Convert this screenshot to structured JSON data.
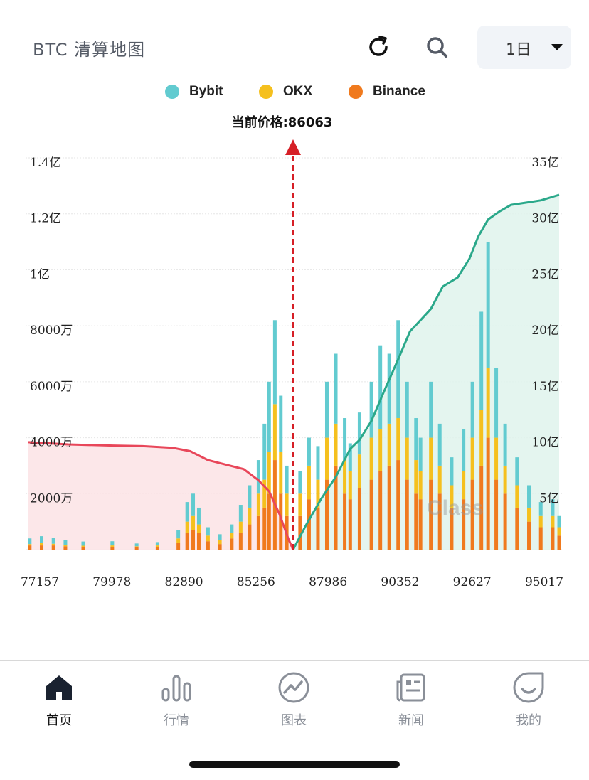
{
  "header": {
    "title": "BTC 清算地图",
    "period": "1日",
    "icons": [
      "refresh-icon",
      "search-icon",
      "dropdown-caret-icon"
    ]
  },
  "chart_data": {
    "type": "bar",
    "legend": [
      {
        "name": "Bybit",
        "color": "#62cbd0"
      },
      {
        "name": "OKX",
        "color": "#f5c01e"
      },
      {
        "name": "Binance",
        "color": "#f07a1e"
      }
    ],
    "current_price_label": "当前价格:86063",
    "current_price": 86063,
    "x_ticks": [
      "77157",
      "79978",
      "82890",
      "85256",
      "87986",
      "90352",
      "92627",
      "95017"
    ],
    "x_range": [
      77157,
      95017
    ],
    "y_left_ticks": [
      "1.4亿",
      "1.2亿",
      "1亿",
      "8000万",
      "6000万",
      "4000万",
      "2000万"
    ],
    "y_left_range": [
      0,
      140000000
    ],
    "y_right_ticks": [
      "35亿",
      "30亿",
      "25亿",
      "20亿",
      "15亿",
      "10亿",
      "5亿"
    ],
    "y_right_range": [
      0,
      3500000000
    ],
    "grid": true,
    "long_cumulative_color": "#e8475a",
    "short_cumulative_color": "#2aa88a",
    "long_cumulative": [
      [
        77157,
        960000000
      ],
      [
        78500,
        940000000
      ],
      [
        80000,
        930000000
      ],
      [
        81000,
        925000000
      ],
      [
        82000,
        910000000
      ],
      [
        82600,
        880000000
      ],
      [
        83200,
        800000000
      ],
      [
        83800,
        760000000
      ],
      [
        84400,
        720000000
      ],
      [
        84900,
        620000000
      ],
      [
        85256,
        520000000
      ],
      [
        85600,
        320000000
      ],
      [
        85900,
        100000000
      ],
      [
        86063,
        0
      ]
    ],
    "short_cumulative": [
      [
        86063,
        0
      ],
      [
        86500,
        220000000
      ],
      [
        87000,
        450000000
      ],
      [
        87500,
        650000000
      ],
      [
        87986,
        900000000
      ],
      [
        88300,
        980000000
      ],
      [
        88700,
        1150000000
      ],
      [
        89100,
        1400000000
      ],
      [
        89600,
        1700000000
      ],
      [
        90000,
        1950000000
      ],
      [
        90352,
        2050000000
      ],
      [
        90700,
        2150000000
      ],
      [
        91100,
        2350000000
      ],
      [
        91600,
        2430000000
      ],
      [
        92000,
        2600000000
      ],
      [
        92300,
        2800000000
      ],
      [
        92627,
        2950000000
      ],
      [
        93000,
        3020000000
      ],
      [
        93400,
        3080000000
      ],
      [
        93900,
        3100000000
      ],
      [
        94400,
        3120000000
      ],
      [
        95017,
        3170000000
      ]
    ],
    "series": [
      {
        "name": "Bybit",
        "color": "#62cbd0"
      },
      {
        "name": "OKX",
        "color": "#f5c01e"
      },
      {
        "name": "Binance",
        "color": "#f07a1e"
      }
    ],
    "bars": [
      [
        77200,
        2000000,
        500000,
        1500000
      ],
      [
        77600,
        2500000,
        800000,
        1500000
      ],
      [
        78000,
        2200000,
        600000,
        1500000
      ],
      [
        78400,
        1800000,
        500000,
        1200000
      ],
      [
        79000,
        1500000,
        400000,
        1000000
      ],
      [
        79978,
        1500000,
        500000,
        1000000
      ],
      [
        80800,
        1000000,
        400000,
        800000
      ],
      [
        81500,
        1200000,
        500000,
        1000000
      ],
      [
        82200,
        3000000,
        1500000,
        2500000
      ],
      [
        82500,
        7000000,
        4000000,
        6000000
      ],
      [
        82700,
        8000000,
        5000000,
        7000000
      ],
      [
        82890,
        6000000,
        3000000,
        6000000
      ],
      [
        83200,
        3000000,
        2000000,
        3000000
      ],
      [
        83600,
        2000000,
        1500000,
        2000000
      ],
      [
        84000,
        3000000,
        2000000,
        4000000
      ],
      [
        84300,
        6000000,
        4000000,
        6000000
      ],
      [
        84600,
        8000000,
        6000000,
        9000000
      ],
      [
        84900,
        12000000,
        8000000,
        12000000
      ],
      [
        85100,
        20000000,
        10000000,
        15000000
      ],
      [
        85256,
        25000000,
        15000000,
        20000000
      ],
      [
        85450,
        30000000,
        20000000,
        32000000
      ],
      [
        85650,
        20000000,
        15000000,
        20000000
      ],
      [
        85850,
        10000000,
        8000000,
        12000000
      ],
      [
        86300,
        8000000,
        8000000,
        12000000
      ],
      [
        86600,
        10000000,
        12000000,
        18000000
      ],
      [
        86900,
        12000000,
        10000000,
        15000000
      ],
      [
        87200,
        20000000,
        15000000,
        25000000
      ],
      [
        87500,
        25000000,
        15000000,
        30000000
      ],
      [
        87800,
        15000000,
        12000000,
        20000000
      ],
      [
        87986,
        10000000,
        10000000,
        18000000
      ],
      [
        88300,
        15000000,
        12000000,
        22000000
      ],
      [
        88700,
        20000000,
        15000000,
        25000000
      ],
      [
        89000,
        30000000,
        15000000,
        28000000
      ],
      [
        89300,
        25000000,
        15000000,
        30000000
      ],
      [
        89600,
        35000000,
        15000000,
        32000000
      ],
      [
        89900,
        20000000,
        15000000,
        25000000
      ],
      [
        90200,
        15000000,
        12000000,
        20000000
      ],
      [
        90352,
        12000000,
        10000000,
        18000000
      ],
      [
        90700,
        20000000,
        15000000,
        25000000
      ],
      [
        91000,
        15000000,
        10000000,
        20000000
      ],
      [
        91400,
        10000000,
        8000000,
        15000000
      ],
      [
        91800,
        15000000,
        10000000,
        18000000
      ],
      [
        92100,
        20000000,
        15000000,
        25000000
      ],
      [
        92400,
        35000000,
        20000000,
        30000000
      ],
      [
        92627,
        45000000,
        25000000,
        40000000
      ],
      [
        92900,
        25000000,
        15000000,
        25000000
      ],
      [
        93200,
        15000000,
        10000000,
        20000000
      ],
      [
        93600,
        10000000,
        8000000,
        15000000
      ],
      [
        94000,
        8000000,
        5000000,
        10000000
      ],
      [
        94400,
        5000000,
        4000000,
        8000000
      ],
      [
        94800,
        6000000,
        4000000,
        8000000
      ],
      [
        95017,
        4000000,
        3000000,
        5000000
      ]
    ]
  },
  "watermark": "Class",
  "tabbar": {
    "items": [
      {
        "label": "首页",
        "icon": "home-icon",
        "active": true
      },
      {
        "label": "行情",
        "icon": "market-bars-icon",
        "active": false
      },
      {
        "label": "图表",
        "icon": "chart-trend-icon",
        "active": false
      },
      {
        "label": "新闻",
        "icon": "news-icon",
        "active": false
      },
      {
        "label": "我的",
        "icon": "profile-smile-icon",
        "active": false
      }
    ]
  }
}
